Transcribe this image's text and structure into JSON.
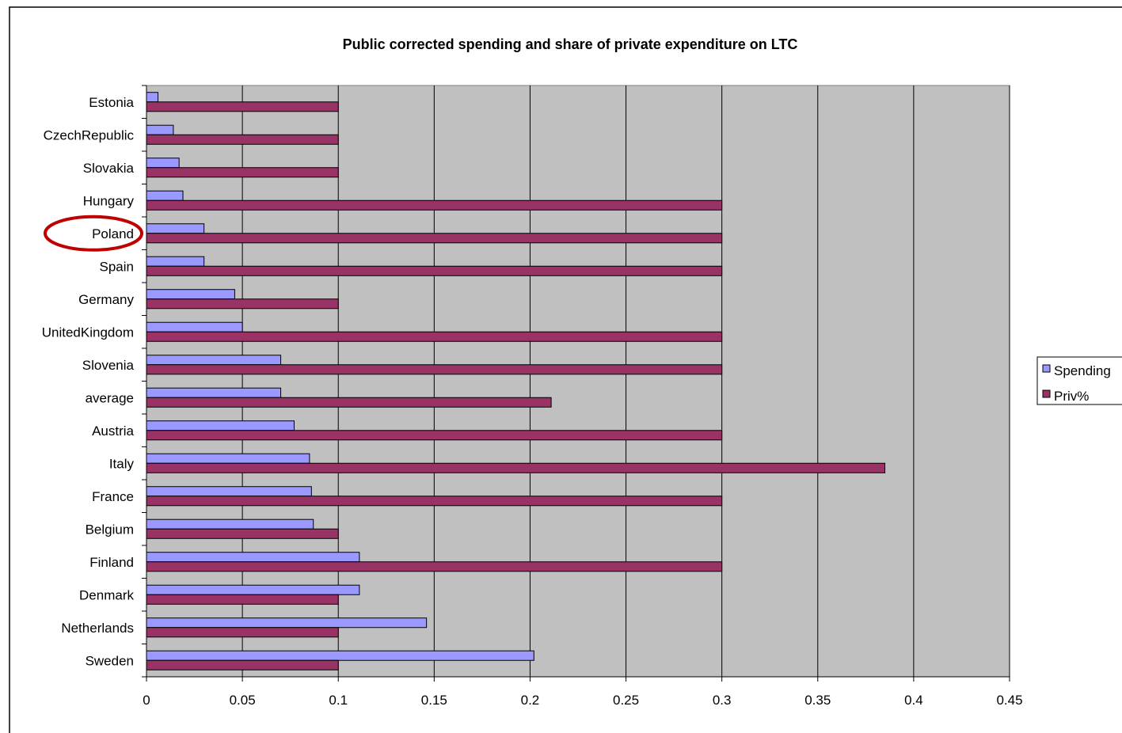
{
  "chart_data": {
    "type": "bar",
    "orientation": "horizontal",
    "title": "Public corrected spending and share of private expenditure on LTC",
    "xlabel": "",
    "ylabel": "",
    "xlim": [
      0,
      0.45
    ],
    "x_ticks": [
      "0",
      "0.05",
      "0.1",
      "0.15",
      "0.2",
      "0.25",
      "0.3",
      "0.35",
      "0.4",
      "0.45"
    ],
    "grid": "vertical major gridlines",
    "plot_background": "#c0c0c0",
    "legend_position": "right",
    "categories": [
      "Estonia",
      "CzechRepublic",
      "Slovakia",
      "Hungary",
      "Poland",
      "Spain",
      "Germany",
      "UnitedKingdom",
      "Slovenia",
      "average",
      "Austria",
      "Italy",
      "France",
      "Belgium",
      "Finland",
      "Denmark",
      "Netherlands",
      "Sweden"
    ],
    "highlighted_category": "Poland",
    "highlight_color": "#c00000",
    "series": [
      {
        "name": "Spending",
        "color": "#9999ff",
        "values": [
          0.006,
          0.014,
          0.017,
          0.019,
          0.03,
          0.03,
          0.046,
          0.05,
          0.07,
          0.07,
          0.077,
          0.085,
          0.086,
          0.087,
          0.111,
          0.111,
          0.146,
          0.202
        ]
      },
      {
        "name": "Priv%",
        "color": "#993366",
        "values": [
          0.1,
          0.1,
          0.1,
          0.3,
          0.3,
          0.3,
          0.1,
          0.3,
          0.3,
          0.211,
          0.3,
          0.385,
          0.3,
          0.1,
          0.3,
          0.1,
          0.1,
          0.1
        ]
      }
    ]
  }
}
